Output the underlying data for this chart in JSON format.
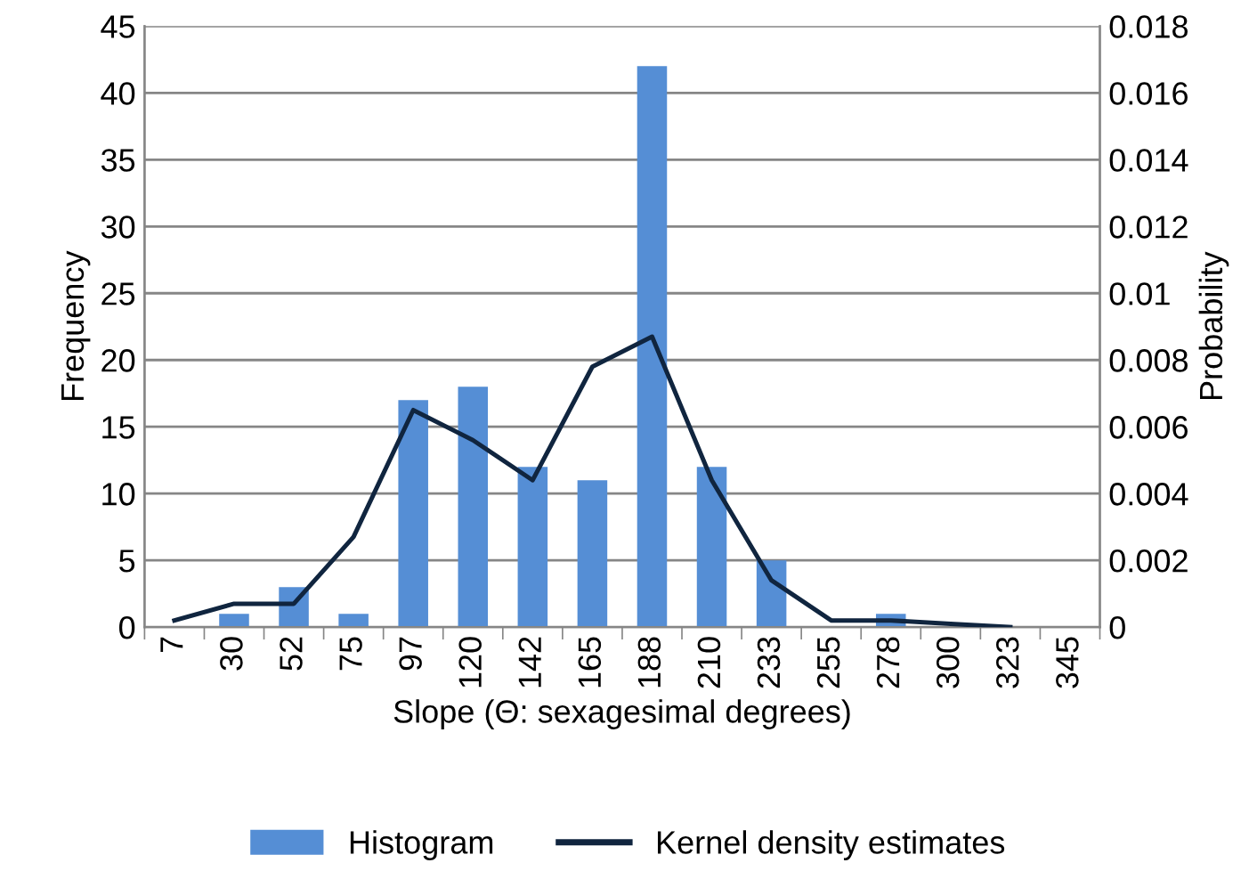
{
  "chart_data": {
    "type": "bar",
    "xlabel": "Slope (Θ: sexagesimal degrees)",
    "ylabel": "Frequency",
    "y2label": "Probability",
    "categories": [
      "7",
      "30",
      "52",
      "75",
      "97",
      "120",
      "142",
      "165",
      "188",
      "210",
      "233",
      "255",
      "278",
      "300",
      "323",
      "345"
    ],
    "series": [
      {
        "name": "Histogram",
        "type": "bar",
        "color": "#558ed5",
        "values": [
          0,
          1,
          3,
          1,
          17,
          18,
          12,
          11,
          42,
          12,
          5,
          0,
          1,
          0,
          0,
          0
        ]
      },
      {
        "name": "Kernel density estimates",
        "type": "line",
        "axis": "y2",
        "color": "#10253f",
        "values": [
          0.0002,
          0.0007,
          0.0007,
          0.0027,
          0.0065,
          0.0056,
          0.0044,
          0.0078,
          0.0087,
          0.0044,
          0.0014,
          0.0002,
          0.0002,
          0.0001,
          0.0,
          null
        ]
      }
    ],
    "ylim": [
      0,
      45
    ],
    "yticks": [
      0,
      5,
      10,
      15,
      20,
      25,
      30,
      35,
      40,
      45
    ],
    "y2lim": [
      0,
      0.018
    ],
    "y2ticks": [
      {
        "value": 0,
        "label": "0"
      },
      0.002,
      0.004,
      0.006,
      0.008,
      {
        "value": 0.01,
        "label": "0.01"
      },
      0.012,
      0.014,
      0.016,
      0.018
    ],
    "grid": "y",
    "legend": "bottom",
    "line_style": "solid",
    "marker": "none"
  }
}
